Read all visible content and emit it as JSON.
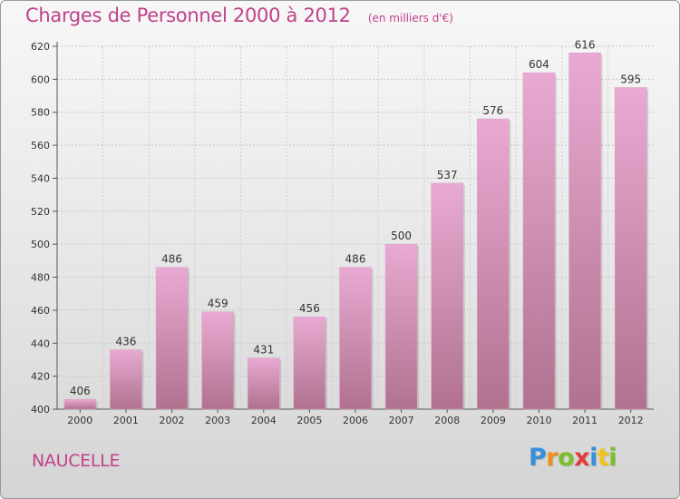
{
  "title": "Charges de Personnel 2000 à 2012",
  "subtitle": "(en milliers d'€)",
  "commune": "NAUCELLE",
  "logo": {
    "letters": [
      "P",
      "r",
      "o",
      "x",
      "i",
      "t",
      "i"
    ],
    "colors": [
      "#3a8fd9",
      "#f28c1a",
      "#7cbf2a",
      "#e23b3b",
      "#3a8fd9",
      "#f2c31a",
      "#7cbf2a"
    ]
  },
  "colors": {
    "accent": "#c0418a",
    "bar_top": "#e8aad2",
    "bar_bottom": "#b0728f"
  },
  "chart_data": {
    "type": "bar",
    "categories": [
      "2000",
      "2001",
      "2002",
      "2003",
      "2004",
      "2005",
      "2006",
      "2007",
      "2008",
      "2009",
      "2010",
      "2011",
      "2012"
    ],
    "values": [
      406,
      436,
      486,
      459,
      431,
      456,
      486,
      500,
      537,
      576,
      604,
      616,
      595
    ],
    "ylim": [
      400,
      620
    ],
    "yticks": [
      400,
      420,
      440,
      460,
      480,
      500,
      520,
      540,
      560,
      580,
      600,
      620
    ],
    "grid": true,
    "data_labels": true
  }
}
